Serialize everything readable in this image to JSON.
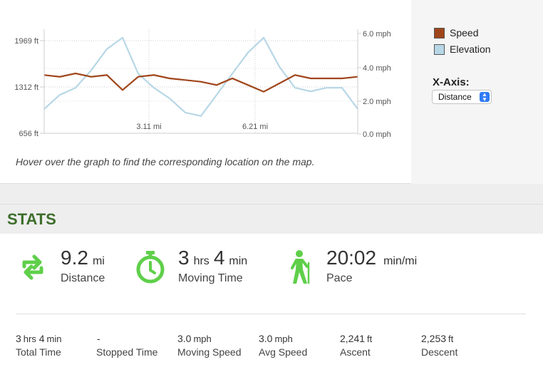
{
  "chart": {
    "hint": "Hover over the graph to find the corresponding location on the map.",
    "colors": {
      "speed": "#a0451a",
      "elevation": "#b7d7e6"
    },
    "legend": {
      "speed": "Speed",
      "elevation": "Elevation"
    },
    "xaxis_label": "X-Axis:",
    "xaxis_selected": "Distance",
    "left_ticks": [
      "1969 ft",
      "1312 ft",
      "656 ft"
    ],
    "right_ticks": [
      "6.0 mph",
      "4.0 mph",
      "2.0 mph",
      "0.0 mph"
    ],
    "x_ticks": [
      "3.11 mi",
      "6.21 mi"
    ]
  },
  "chart_data": {
    "type": "line",
    "x": [
      0,
      0.46,
      0.92,
      1.38,
      1.84,
      2.3,
      2.76,
      3.22,
      3.68,
      4.14,
      4.6,
      5.06,
      5.52,
      5.98,
      6.44,
      6.9,
      7.36,
      7.82,
      8.28,
      8.74,
      9.2
    ],
    "xlabel": "",
    "x_ticks": [
      "3.11 mi",
      "6.21 mi"
    ],
    "series": [
      {
        "name": "Speed",
        "axis": "right",
        "values": [
          3.5,
          3.4,
          3.6,
          3.4,
          3.5,
          2.6,
          3.4,
          3.5,
          3.3,
          3.2,
          3.1,
          2.9,
          3.3,
          2.9,
          2.5,
          3.0,
          3.5,
          3.3,
          3.3,
          3.3,
          3.4
        ]
      },
      {
        "name": "Elevation",
        "axis": "left",
        "values": [
          1000,
          1200,
          1300,
          1550,
          1850,
          2010,
          1500,
          1300,
          1150,
          950,
          900,
          1200,
          1500,
          1800,
          2010,
          1600,
          1300,
          1250,
          1300,
          1300,
          1000
        ]
      }
    ],
    "y_left": {
      "label": "",
      "range": [
        656,
        1969
      ],
      "ticks": [
        "1969 ft",
        "1312 ft",
        "656 ft"
      ]
    },
    "y_right": {
      "label": "",
      "range": [
        0,
        6
      ],
      "ticks": [
        "6.0 mph",
        "4.0 mph",
        "2.0 mph",
        "0.0 mph"
      ]
    },
    "legend": "right",
    "grid": true
  },
  "stats": {
    "title": "STATS",
    "distance": {
      "value": "9.2",
      "unit": "mi",
      "label": "Distance"
    },
    "moving": {
      "hrs": "3",
      "hrs_unit": "hrs",
      "min": "4",
      "min_unit": "min",
      "label": "Moving Time"
    },
    "pace": {
      "value": "20:02",
      "unit": "min/mi",
      "label": "Pace"
    },
    "total_time": {
      "hrs": "3",
      "hrs_unit": "hrs",
      "min": "4",
      "min_unit": "min",
      "label": "Total Time"
    },
    "stopped_time": {
      "value": "-",
      "label": "Stopped Time"
    },
    "moving_speed": {
      "value": "3.0",
      "unit": "mph",
      "label": "Moving Speed"
    },
    "avg_speed": {
      "value": "3.0",
      "unit": "mph",
      "label": "Avg Speed"
    },
    "ascent": {
      "value": "2,241",
      "unit": "ft",
      "label": "Ascent"
    },
    "descent": {
      "value": "2,253",
      "unit": "ft",
      "label": "Descent"
    },
    "icon_color": "#5fcf4a"
  }
}
